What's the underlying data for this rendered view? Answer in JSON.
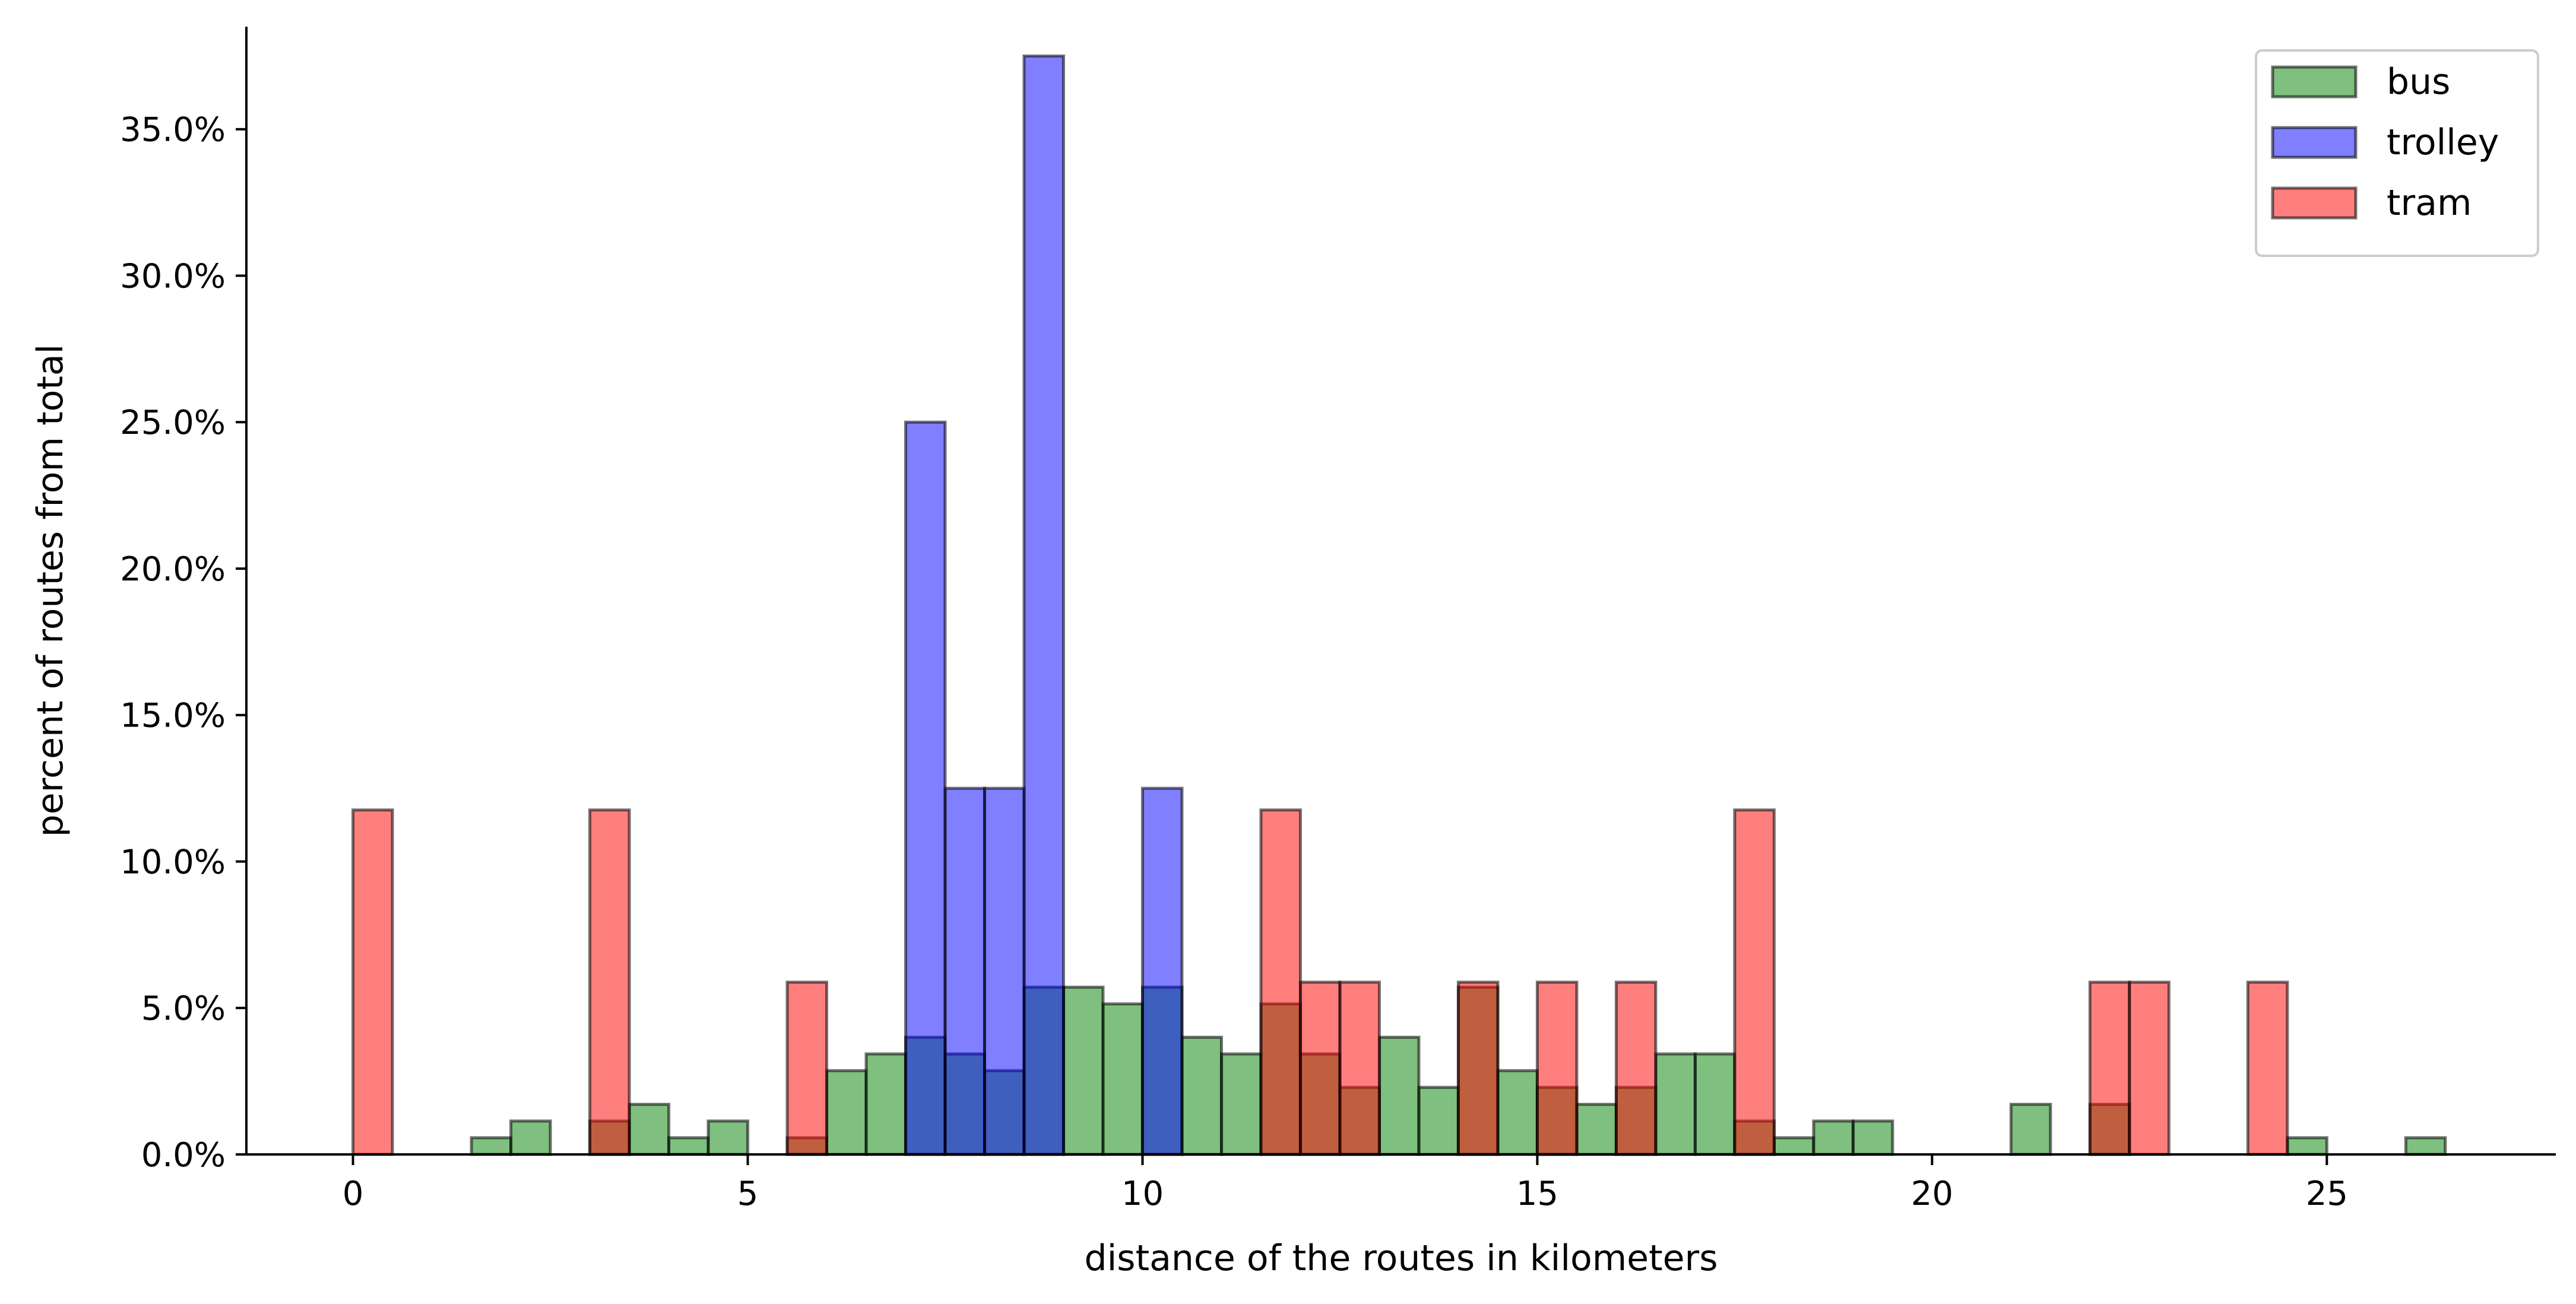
{
  "chart_data": {
    "type": "bar",
    "bin_width": 0.5,
    "xlim": [
      -1.35,
      27.9
    ],
    "ylim": [
      0,
      38.5
    ],
    "xlabel": "distance of the routes in kilometers",
    "ylabel": "percent of routes from total",
    "x_ticks": [
      0,
      5,
      10,
      15,
      20,
      25
    ],
    "x_tick_labels": [
      "0",
      "5",
      "10",
      "15",
      "20",
      "25"
    ],
    "y_ticks": [
      0,
      5,
      10,
      15,
      20,
      25,
      30,
      35
    ],
    "y_tick_labels": [
      "0.0%",
      "5.0%",
      "10.0%",
      "15.0%",
      "20.0%",
      "25.0%",
      "30.0%",
      "35.0%"
    ],
    "grid": false,
    "legend_position": "top-right",
    "series": [
      {
        "name": "bus",
        "color": "#008000",
        "bins": [
          {
            "x": 1.5,
            "y": 0.57
          },
          {
            "x": 2.0,
            "y": 1.14
          },
          {
            "x": 3.0,
            "y": 1.14
          },
          {
            "x": 3.5,
            "y": 1.71
          },
          {
            "x": 4.0,
            "y": 0.57
          },
          {
            "x": 4.5,
            "y": 1.14
          },
          {
            "x": 5.5,
            "y": 0.57
          },
          {
            "x": 6.0,
            "y": 2.86
          },
          {
            "x": 6.5,
            "y": 3.43
          },
          {
            "x": 7.0,
            "y": 4.0
          },
          {
            "x": 7.5,
            "y": 3.43
          },
          {
            "x": 8.0,
            "y": 2.86
          },
          {
            "x": 8.5,
            "y": 5.71
          },
          {
            "x": 9.0,
            "y": 5.71
          },
          {
            "x": 9.5,
            "y": 5.14
          },
          {
            "x": 10.0,
            "y": 5.71
          },
          {
            "x": 10.5,
            "y": 4.0
          },
          {
            "x": 11.0,
            "y": 3.43
          },
          {
            "x": 11.5,
            "y": 5.14
          },
          {
            "x": 12.0,
            "y": 3.43
          },
          {
            "x": 12.5,
            "y": 2.29
          },
          {
            "x": 13.0,
            "y": 4.0
          },
          {
            "x": 13.5,
            "y": 2.29
          },
          {
            "x": 14.0,
            "y": 5.71
          },
          {
            "x": 14.5,
            "y": 2.86
          },
          {
            "x": 15.0,
            "y": 2.29
          },
          {
            "x": 15.5,
            "y": 1.71
          },
          {
            "x": 16.0,
            "y": 2.29
          },
          {
            "x": 16.5,
            "y": 3.43
          },
          {
            "x": 17.0,
            "y": 3.43
          },
          {
            "x": 17.5,
            "y": 1.14
          },
          {
            "x": 18.0,
            "y": 0.57
          },
          {
            "x": 18.5,
            "y": 1.14
          },
          {
            "x": 19.0,
            "y": 1.14
          },
          {
            "x": 21.0,
            "y": 1.71
          },
          {
            "x": 22.0,
            "y": 1.71
          },
          {
            "x": 24.5,
            "y": 0.57
          },
          {
            "x": 26.0,
            "y": 0.57
          }
        ]
      },
      {
        "name": "trolley",
        "color": "#0000ff",
        "bins": [
          {
            "x": 7.0,
            "y": 25.0
          },
          {
            "x": 7.5,
            "y": 12.5
          },
          {
            "x": 8.0,
            "y": 12.5
          },
          {
            "x": 8.5,
            "y": 37.5
          },
          {
            "x": 10.0,
            "y": 12.5
          }
        ]
      },
      {
        "name": "tram",
        "color": "#ff0000",
        "bins": [
          {
            "x": 0.0,
            "y": 11.76
          },
          {
            "x": 3.0,
            "y": 11.76
          },
          {
            "x": 5.5,
            "y": 5.88
          },
          {
            "x": 11.5,
            "y": 11.76
          },
          {
            "x": 12.0,
            "y": 5.88
          },
          {
            "x": 12.5,
            "y": 5.88
          },
          {
            "x": 14.0,
            "y": 5.88
          },
          {
            "x": 15.0,
            "y": 5.88
          },
          {
            "x": 16.0,
            "y": 5.88
          },
          {
            "x": 17.5,
            "y": 11.76
          },
          {
            "x": 22.0,
            "y": 5.88
          },
          {
            "x": 22.5,
            "y": 5.88
          },
          {
            "x": 24.0,
            "y": 5.88
          }
        ]
      }
    ]
  }
}
